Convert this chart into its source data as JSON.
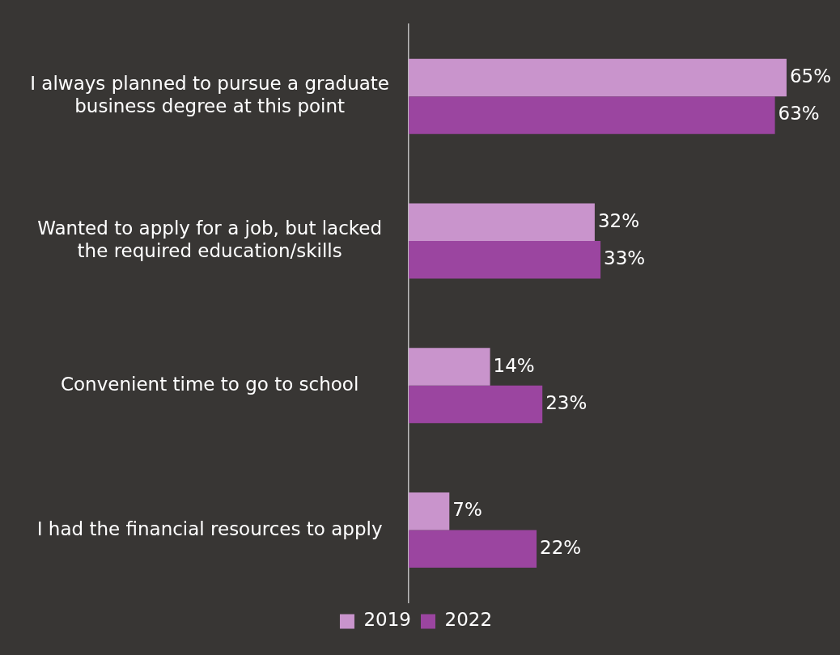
{
  "chart_data": {
    "type": "bar",
    "orientation": "horizontal",
    "categories": [
      "I always planned to pursue a graduate business degree at this point",
      "Wanted to apply for a job, but lacked the required education/skills",
      "Convenient time to go to school",
      "I had the financial resources to apply"
    ],
    "series": [
      {
        "name": "2019",
        "color": "#c994cc",
        "values": [
          65,
          32,
          14,
          7
        ],
        "value_labels": [
          "65%",
          "32%",
          "14%",
          "7%"
        ]
      },
      {
        "name": "2022",
        "color": "#9b45a0",
        "values": [
          63,
          33,
          23,
          22
        ],
        "value_labels": [
          "63%",
          "33%",
          "23%",
          "22%"
        ]
      }
    ],
    "legend": "bottom",
    "grid": false
  }
}
